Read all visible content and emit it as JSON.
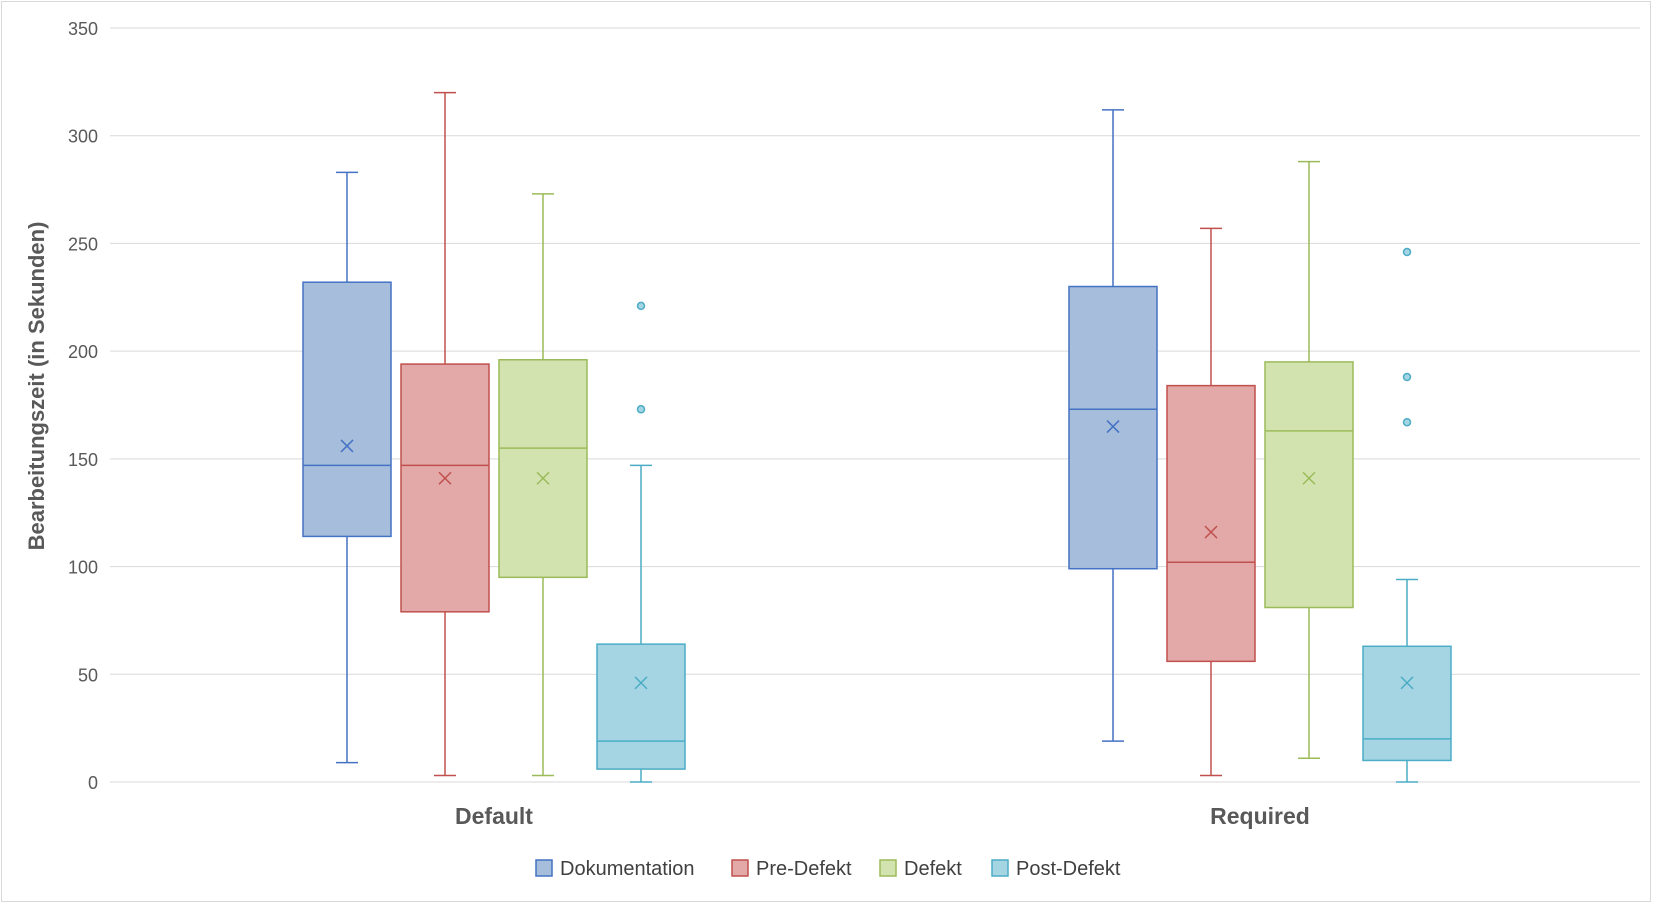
{
  "chart_data": {
    "type": "boxplot",
    "title": "",
    "ylabel": "Bearbeitungszeit (in Sekunden)",
    "xlabel": "",
    "ylim": [
      0,
      350
    ],
    "yticks": [
      0,
      50,
      100,
      150,
      200,
      250,
      300,
      350
    ],
    "grid": true,
    "legend_position": "bottom",
    "categories": [
      "Default",
      "Required"
    ],
    "series": [
      {
        "name": "Dokumentation",
        "color": "#4472c4",
        "fill": "#a6bddb",
        "boxes": [
          {
            "min": 9,
            "q1": 114,
            "median": 147,
            "q3": 232,
            "max": 283,
            "mean": 156,
            "outliers": []
          },
          {
            "min": 19,
            "q1": 99,
            "median": 173,
            "q3": 230,
            "max": 312,
            "mean": 165,
            "outliers": []
          }
        ]
      },
      {
        "name": "Pre-Defekt",
        "color": "#c0504d",
        "fill": "#e3a8a8",
        "boxes": [
          {
            "min": 3,
            "q1": 79,
            "median": 147,
            "q3": 194,
            "max": 320,
            "mean": 141,
            "outliers": []
          },
          {
            "min": 3,
            "q1": 56,
            "median": 102,
            "q3": 184,
            "max": 257,
            "mean": 116,
            "outliers": []
          }
        ]
      },
      {
        "name": "Defekt",
        "color": "#9bbb59",
        "fill": "#d3e3b0",
        "boxes": [
          {
            "min": 3,
            "q1": 95,
            "median": 155,
            "q3": 196,
            "max": 273,
            "mean": 141,
            "outliers": []
          },
          {
            "min": 11,
            "q1": 81,
            "median": 163,
            "q3": 195,
            "max": 288,
            "mean": 141,
            "outliers": []
          }
        ]
      },
      {
        "name": "Post-Defekt",
        "color": "#4bacc6",
        "fill": "#a5d5e2",
        "boxes": [
          {
            "min": 0,
            "q1": 6,
            "median": 19,
            "q3": 64,
            "max": 147,
            "mean": 46,
            "outliers": [
              173,
              221
            ]
          },
          {
            "min": 0,
            "q1": 10,
            "median": 20,
            "q3": 63,
            "max": 94,
            "mean": 46,
            "outliers": [
              167,
              188,
              246
            ]
          }
        ]
      }
    ]
  }
}
